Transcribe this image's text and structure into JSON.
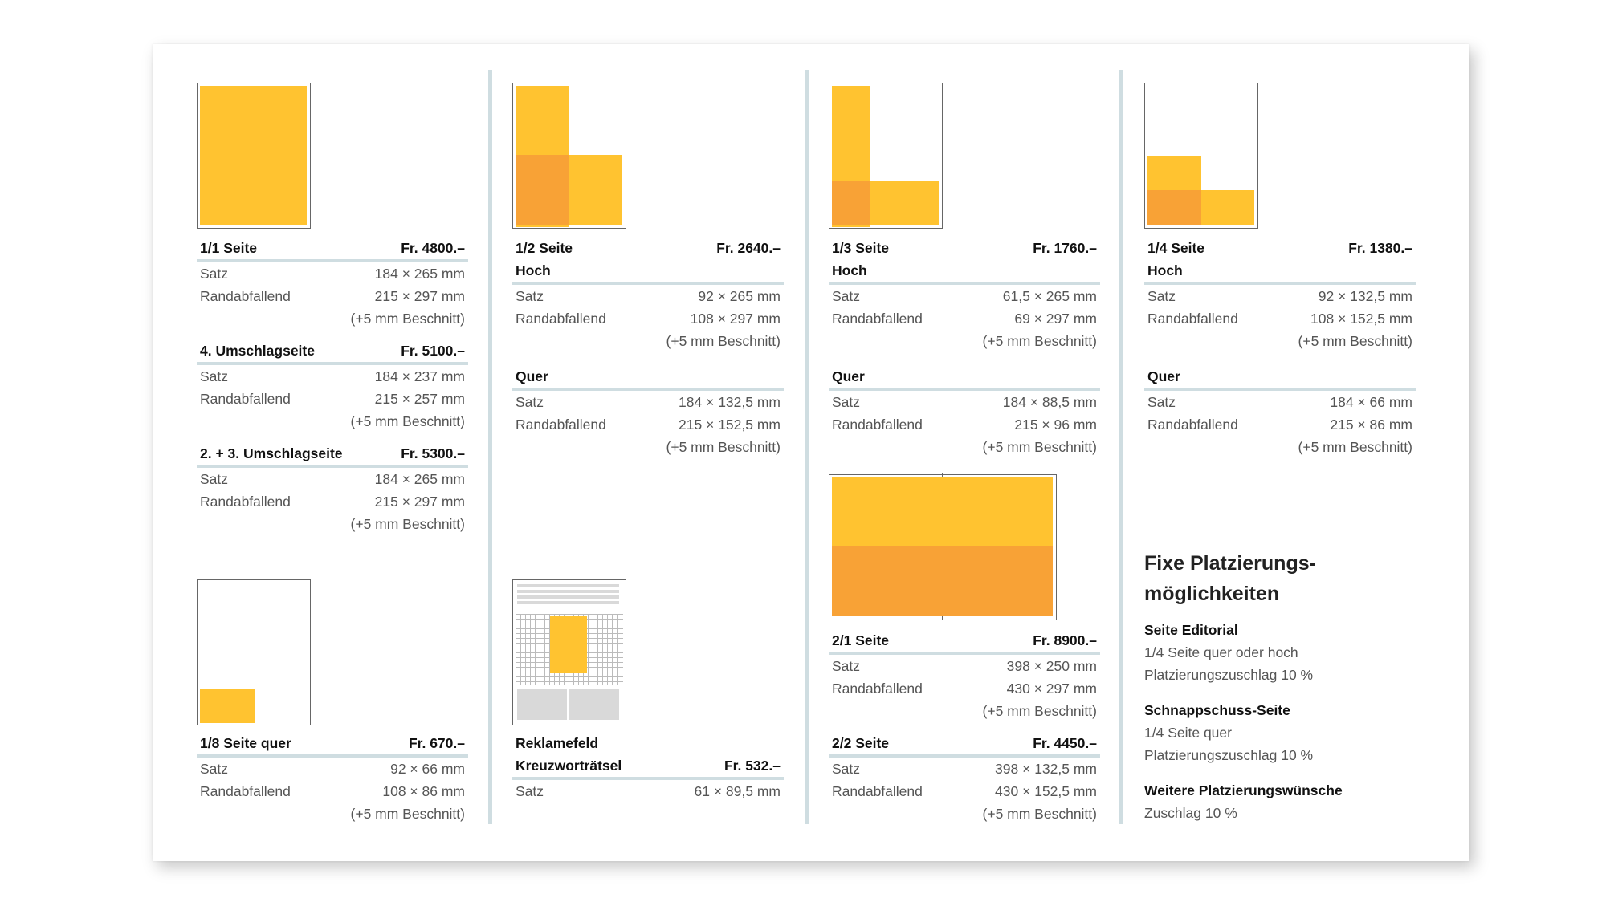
{
  "col1": {
    "s1": {
      "title": "1/1 Seite",
      "price": "Fr. 4800.–",
      "rows": [
        [
          "Satz",
          "184 × 265 mm"
        ],
        [
          "Randabfallend",
          "215 × 297 mm"
        ]
      ],
      "note": "(+5 mm Beschnitt)"
    },
    "s2": {
      "title": "4. Umschlagseite",
      "price": "Fr. 5100.–",
      "rows": [
        [
          "Satz",
          "184 × 237 mm"
        ],
        [
          "Randabfallend",
          "215 × 257 mm"
        ]
      ],
      "note": "(+5 mm Beschnitt)"
    },
    "s3": {
      "title": "2. + 3. Umschlagseite",
      "price": "Fr. 5300.–",
      "rows": [
        [
          "Satz",
          "184 × 265 mm"
        ],
        [
          "Randabfallend",
          "215 × 297 mm"
        ]
      ],
      "note": "(+5 mm Beschnitt)"
    },
    "s4": {
      "title": "1/8 Seite quer",
      "price": "Fr. 670.–",
      "rows": [
        [
          "Satz",
          "92 × 66 mm"
        ],
        [
          "Randabfallend",
          "108 × 86 mm"
        ]
      ],
      "note": "(+5 mm Beschnitt)"
    }
  },
  "col2": {
    "s1": {
      "title": "1/2 Seite",
      "price": "Fr. 2640.–",
      "sub1": "Hoch",
      "rows1": [
        [
          "Satz",
          "92 × 265 mm"
        ],
        [
          "Randabfallend",
          "108 × 297 mm"
        ]
      ],
      "note1": "(+5 mm Beschnitt)",
      "sub2": "Quer",
      "rows2": [
        [
          "Satz",
          "184 × 132,5 mm"
        ],
        [
          "Randabfallend",
          "215 × 152,5 mm"
        ]
      ],
      "note2": "(+5 mm Beschnitt)"
    },
    "s2": {
      "title1": "Reklamefeld",
      "title2": "Kreuzworträtsel",
      "price": "Fr. 532.–",
      "rows": [
        [
          "Satz",
          "61 × 89,5 mm"
        ]
      ]
    }
  },
  "col3": {
    "s1": {
      "title": "1/3 Seite",
      "price": "Fr. 1760.–",
      "sub1": "Hoch",
      "rows1": [
        [
          "Satz",
          "61,5 × 265 mm"
        ],
        [
          "Randabfallend",
          "69 × 297 mm"
        ]
      ],
      "note1": "(+5 mm Beschnitt)",
      "sub2": "Quer",
      "rows2": [
        [
          "Satz",
          "184 × 88,5 mm"
        ],
        [
          "Randabfallend",
          "215 × 96 mm"
        ]
      ],
      "note2": "(+5 mm Beschnitt)"
    },
    "s2": {
      "title": "2/1 Seite",
      "price": "Fr. 8900.–",
      "rows": [
        [
          "Satz",
          "398 × 250 mm"
        ],
        [
          "Randabfallend",
          "430 × 297 mm"
        ]
      ],
      "note": "(+5 mm Beschnitt)"
    },
    "s3": {
      "title": "2/2 Seite",
      "price": "Fr. 4450.–",
      "rows": [
        [
          "Satz",
          "398 × 132,5 mm"
        ],
        [
          "Randabfallend",
          "430 × 152,5 mm"
        ]
      ],
      "note": "(+5 mm Beschnitt)"
    }
  },
  "col4": {
    "s1": {
      "title": "1/4 Seite",
      "price": "Fr. 1380.–",
      "sub1": "Hoch",
      "rows1": [
        [
          "Satz",
          "92 × 132,5 mm"
        ],
        [
          "Randabfallend",
          "108 × 152,5 mm"
        ]
      ],
      "note1": "(+5 mm Beschnitt)",
      "sub2": "Quer",
      "rows2": [
        [
          "Satz",
          "184 × 66 mm"
        ],
        [
          "Randabfallend",
          "215 × 86 mm"
        ]
      ],
      "note2": "(+5 mm Beschnitt)"
    },
    "fixe": {
      "title1": "Fixe Platzierungs-",
      "title2": "möglichkeiten",
      "items": [
        {
          "head": "Seite Editorial",
          "l1": "1/4 Seite quer oder hoch",
          "l2": "Platzierungszuschlag 10 %"
        },
        {
          "head": "Schnappschuss-Seite",
          "l1": "1/4 Seite quer",
          "l2": "Platzierungszuschlag 10 %"
        },
        {
          "head": "Weitere Platzierungswünsche",
          "l1": "Zuschlag 10 %"
        }
      ]
    }
  },
  "colors": {
    "yellow": "#ffc330",
    "orange": "#f8a236",
    "rule": "#cfdde1"
  }
}
